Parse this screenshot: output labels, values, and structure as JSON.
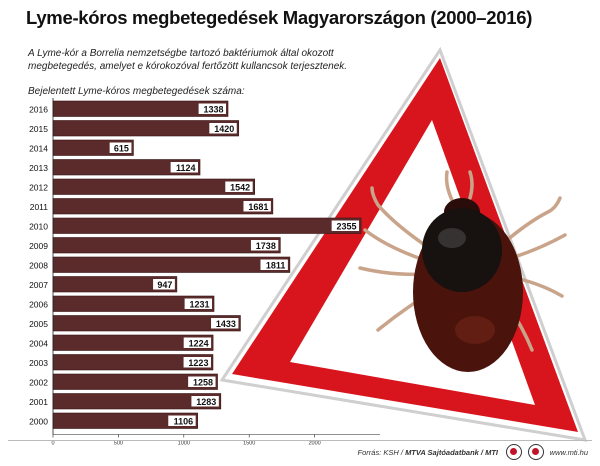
{
  "title": "Lyme-kóros megbetegedések Magyarországon (2000–2016)",
  "subtitle": "A Lyme-kór a Borrelia nemzetségbe tartozó baktériumok által okozott megbetegedés, amelyet e kórokozóval fertőzött kullancsok terjesztenek.",
  "count_label": "Bejelentett Lyme-kóros megbetegedések száma:",
  "colors": {
    "bar": "#5b2a2a",
    "bar_edge": "#3a1616",
    "label_box": "#ffffff",
    "warning_red": "#d8151d",
    "tick_body": "#4a130c"
  },
  "illustration": {
    "description_icon": "tick-on-warning-triangle-icon"
  },
  "chart_data": {
    "type": "bar",
    "orientation": "horizontal",
    "categories": [
      "2016",
      "2015",
      "2014",
      "2013",
      "2012",
      "2011",
      "2010",
      "2009",
      "2008",
      "2007",
      "2006",
      "2005",
      "2004",
      "2003",
      "2002",
      "2001",
      "2000"
    ],
    "values": [
      1338,
      1420,
      615,
      1124,
      1542,
      1681,
      2355,
      1738,
      1811,
      947,
      1231,
      1433,
      1224,
      1223,
      1258,
      1283,
      1106
    ],
    "xlim": [
      0,
      2500
    ],
    "xticks": [
      "0",
      "500",
      "1000",
      "1500",
      "2000"
    ],
    "grid": false,
    "legend": "none",
    "data_labels": true
  },
  "footer": {
    "source_prefix": "Forrás: KSH / ",
    "source_bold": "MTVA Sajtóadatbank / MTI",
    "website": "www.mti.hu"
  }
}
